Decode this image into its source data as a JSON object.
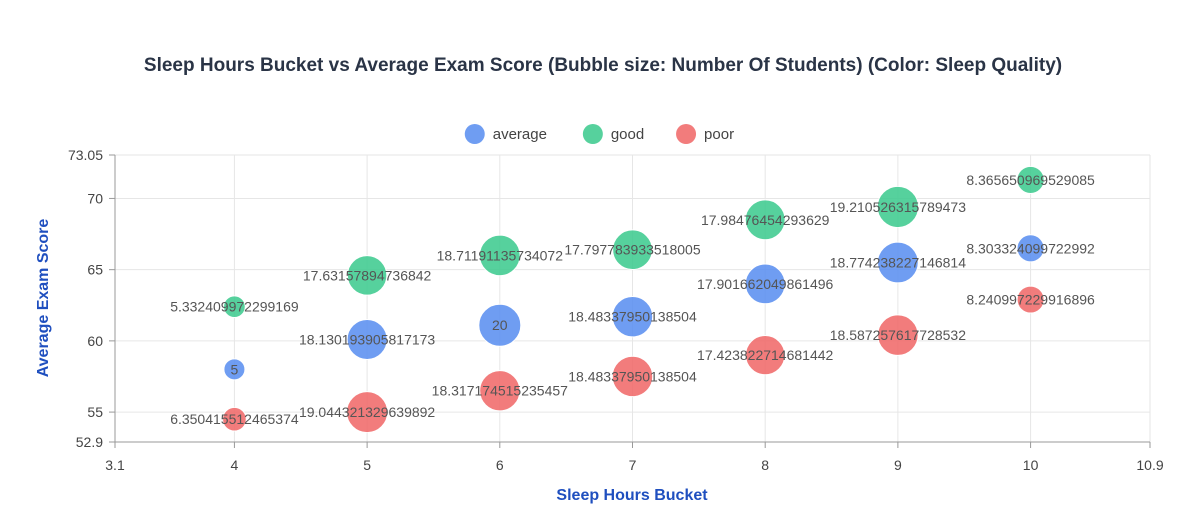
{
  "chart_data": {
    "type": "scatter",
    "title": "Sleep Hours Bucket vs Average Exam Score (Bubble size: Number Of Students) (Color: Sleep Quality)",
    "xlabel": "Sleep Hours Bucket",
    "ylabel": "Average Exam Score",
    "xlim": [
      3.1,
      10.9
    ],
    "ylim": [
      52.9,
      73.05
    ],
    "x_ticks": [
      "3.1",
      "4",
      "5",
      "6",
      "7",
      "8",
      "9",
      "10",
      "10.9"
    ],
    "x_tick_values": [
      3.1,
      4,
      5,
      6,
      7,
      8,
      9,
      10,
      10.9
    ],
    "y_ticks": [
      "52.9",
      "55",
      "60",
      "65",
      "70",
      "73.05"
    ],
    "y_tick_values": [
      52.9,
      55,
      60,
      65,
      70,
      73.05
    ],
    "grid": true,
    "legend_position": "top-center",
    "series": [
      {
        "name": "average",
        "color": "#5b8ff0",
        "points": [
          {
            "x": 4,
            "y": 58.0,
            "size": 5,
            "label": "5"
          },
          {
            "x": 5,
            "y": 60.1,
            "size": 18.130193905817173,
            "label": "18.130193905817173"
          },
          {
            "x": 6,
            "y": 61.1,
            "size": 20,
            "label": "20"
          },
          {
            "x": 7,
            "y": 61.7,
            "size": 18.48337950138504,
            "label": "18.48337950138504"
          },
          {
            "x": 8,
            "y": 64.0,
            "size": 17.901662049861496,
            "label": "17.901662049861496"
          },
          {
            "x": 9,
            "y": 65.5,
            "size": 18.774238227146814,
            "label": "18.774238227146814"
          },
          {
            "x": 10,
            "y": 66.5,
            "size": 8.303324099722992,
            "label": "8.303324099722992"
          }
        ]
      },
      {
        "name": "good",
        "color": "#3fcb8f",
        "points": [
          {
            "x": 4,
            "y": 62.4,
            "size": 5.332409972299169,
            "label": "5.332409972299169"
          },
          {
            "x": 5,
            "y": 64.6,
            "size": 17.63157894736842,
            "label": "17.63157894736842"
          },
          {
            "x": 6,
            "y": 66.0,
            "size": 18.71191135734072,
            "label": "18.71191135734072"
          },
          {
            "x": 7,
            "y": 66.4,
            "size": 17.797783933518005,
            "label": "17.797783933518005"
          },
          {
            "x": 8,
            "y": 68.5,
            "size": 17.98476454293629,
            "label": "17.98476454293629"
          },
          {
            "x": 9,
            "y": 69.4,
            "size": 19.210526315789473,
            "label": "19.210526315789473"
          },
          {
            "x": 10,
            "y": 71.3,
            "size": 8.365650969529085,
            "label": "8.365650969529085"
          }
        ]
      },
      {
        "name": "poor",
        "color": "#f06a6a",
        "points": [
          {
            "x": 4,
            "y": 54.5,
            "size": 6.350415512465374,
            "label": "6.350415512465374"
          },
          {
            "x": 5,
            "y": 55.0,
            "size": 19.044321329639892,
            "label": "19.044321329639892"
          },
          {
            "x": 6,
            "y": 56.5,
            "size": 18.317174515235457,
            "label": "18.317174515235457"
          },
          {
            "x": 7,
            "y": 57.5,
            "size": 18.48337950138504,
            "label": "18.48337950138504"
          },
          {
            "x": 8,
            "y": 59.0,
            "size": 17.423822714681442,
            "label": "17.423822714681442"
          },
          {
            "x": 9,
            "y": 60.4,
            "size": 18.587257617728532,
            "label": "18.587257617728532"
          },
          {
            "x": 10,
            "y": 62.9,
            "size": 8.240997229916896,
            "label": "8.240997229916896"
          }
        ]
      }
    ]
  }
}
